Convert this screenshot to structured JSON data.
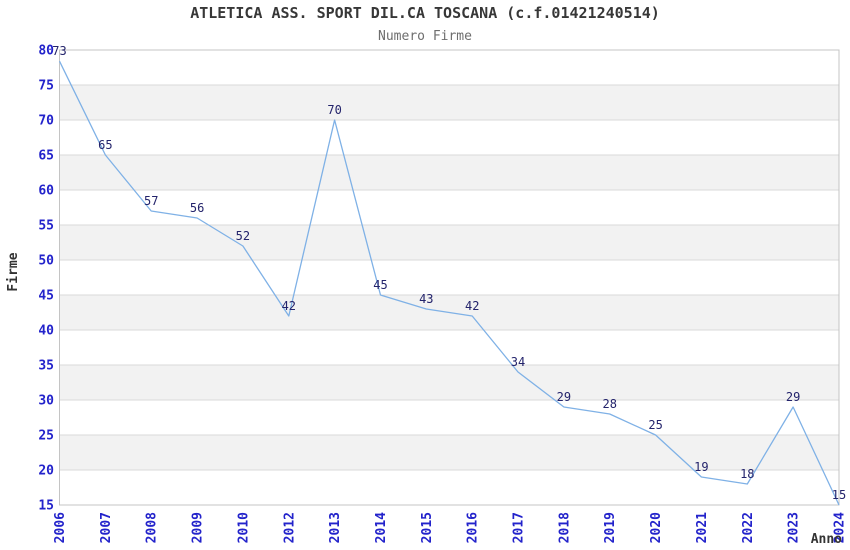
{
  "header": {
    "title": "ATLETICA ASS. SPORT DIL.CA TOSCANA (c.f.01421240514)",
    "subtitle": "Numero Firme"
  },
  "chart_data": {
    "type": "line",
    "title": "ATLETICA ASS. SPORT DIL.CA TOSCANA (c.f.01421240514)",
    "subtitle": "Numero Firme",
    "xlabel": "Anno",
    "ylabel": "Firme",
    "categories": [
      "2006",
      "2007",
      "2008",
      "2009",
      "2010",
      "2012",
      "2013",
      "2014",
      "2015",
      "2016",
      "2017",
      "2018",
      "2019",
      "2020",
      "2021",
      "2022",
      "2023",
      "2024"
    ],
    "values": [
      73,
      65,
      57,
      56,
      52,
      42,
      70,
      45,
      43,
      42,
      34,
      29,
      28,
      25,
      19,
      18,
      29,
      15
    ],
    "ylim": [
      15,
      80
    ],
    "ytick_step": 5,
    "grid": "horizontal-only",
    "banding": "alternating 5-unit light-gray bands (75-70, 65-60, 55-50, 45-40, 35-30, 25-20)",
    "legend": "none",
    "x_tick_rotation": "vertical bottom-to-top",
    "first_point_render_value": 78.4,
    "colors": {
      "line": "#7fb1e6",
      "data_label": "#23236b",
      "tick_label": "#2323cb",
      "grid_line": "#d9d9d9",
      "band_fill": "#f2f2f2",
      "plot_border": "#c4c4c4",
      "title": "#373737",
      "subtitle": "#6e6e6e",
      "axis_name": "#333333",
      "background": "#ffffff"
    }
  }
}
